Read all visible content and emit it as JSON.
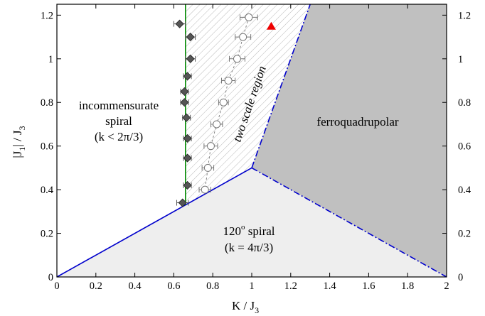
{
  "chart_data": {
    "type": "scatter",
    "title": "",
    "xlabel": "K / J",
    "xlabel_sub": "3",
    "ylabel": "|J",
    "ylabel_sub1": "1",
    "ylabel_mid": "| / J",
    "ylabel_sub2": "3",
    "xlim": [
      0,
      2
    ],
    "ylim": [
      0,
      1.25
    ],
    "x_ticks": [
      "0",
      "0.2",
      "0.4",
      "0.6",
      "0.8",
      "1",
      "1.2",
      "1.4",
      "1.6",
      "1.8",
      "2"
    ],
    "y_ticks": [
      "0",
      "0.2",
      "0.4",
      "0.6",
      "0.8",
      "1",
      "1.2"
    ],
    "grid": false,
    "regions": {
      "incommensurate": {
        "line1": "incommensurate",
        "line2": "spiral",
        "line3": "(k < 2π/3)"
      },
      "two_scale": "two scale region",
      "ferroquadrupolar": "ferroquadrupolar",
      "spiral120": {
        "base": "120",
        "sup": "o",
        "rest": " spiral",
        "line2": "(k = 4π/3)"
      }
    },
    "boundaries": {
      "solid_blue": [
        [
          0,
          0
        ],
        [
          1,
          0.5
        ]
      ],
      "dashdot_blue_upper": [
        [
          1,
          0.5
        ],
        [
          1.3,
          1.25
        ]
      ],
      "dashdot_blue_lower": [
        [
          1,
          0.5
        ],
        [
          2,
          0
        ]
      ],
      "green_vertical_x": 0.66
    },
    "series": [
      {
        "marker": "diamond",
        "color": "#555555",
        "points": [
          {
            "x": 0.63,
            "y": 1.16,
            "xerr": 0.03
          },
          {
            "x": 0.685,
            "y": 1.1,
            "xerr": 0.025
          },
          {
            "x": 0.685,
            "y": 1.0,
            "xerr": 0.025
          },
          {
            "x": 0.67,
            "y": 0.92,
            "xerr": 0.02
          },
          {
            "x": 0.655,
            "y": 0.85,
            "xerr": 0.02
          },
          {
            "x": 0.655,
            "y": 0.8,
            "xerr": 0.02
          },
          {
            "x": 0.665,
            "y": 0.73,
            "xerr": 0.02
          },
          {
            "x": 0.67,
            "y": 0.635,
            "xerr": 0.02
          },
          {
            "x": 0.67,
            "y": 0.545,
            "xerr": 0.02
          },
          {
            "x": 0.67,
            "y": 0.42,
            "xerr": 0.02
          },
          {
            "x": 0.645,
            "y": 0.34,
            "xerr": 0.03
          }
        ]
      },
      {
        "marker": "circle-open",
        "color": "#777777",
        "points": [
          {
            "x": 0.985,
            "y": 1.19,
            "xerr": 0.045
          },
          {
            "x": 0.955,
            "y": 1.1,
            "xerr": 0.04
          },
          {
            "x": 0.925,
            "y": 1.0,
            "xerr": 0.04
          },
          {
            "x": 0.88,
            "y": 0.9,
            "xerr": 0.035
          },
          {
            "x": 0.855,
            "y": 0.8,
            "xerr": 0.025
          },
          {
            "x": 0.82,
            "y": 0.7,
            "xerr": 0.03
          },
          {
            "x": 0.79,
            "y": 0.6,
            "xerr": 0.035
          },
          {
            "x": 0.775,
            "y": 0.5,
            "xerr": 0.03
          },
          {
            "x": 0.76,
            "y": 0.4,
            "xerr": 0.03
          }
        ]
      },
      {
        "marker": "triangle",
        "color": "#ee0000",
        "points": [
          {
            "x": 1.1,
            "y": 1.15
          }
        ]
      }
    ]
  }
}
